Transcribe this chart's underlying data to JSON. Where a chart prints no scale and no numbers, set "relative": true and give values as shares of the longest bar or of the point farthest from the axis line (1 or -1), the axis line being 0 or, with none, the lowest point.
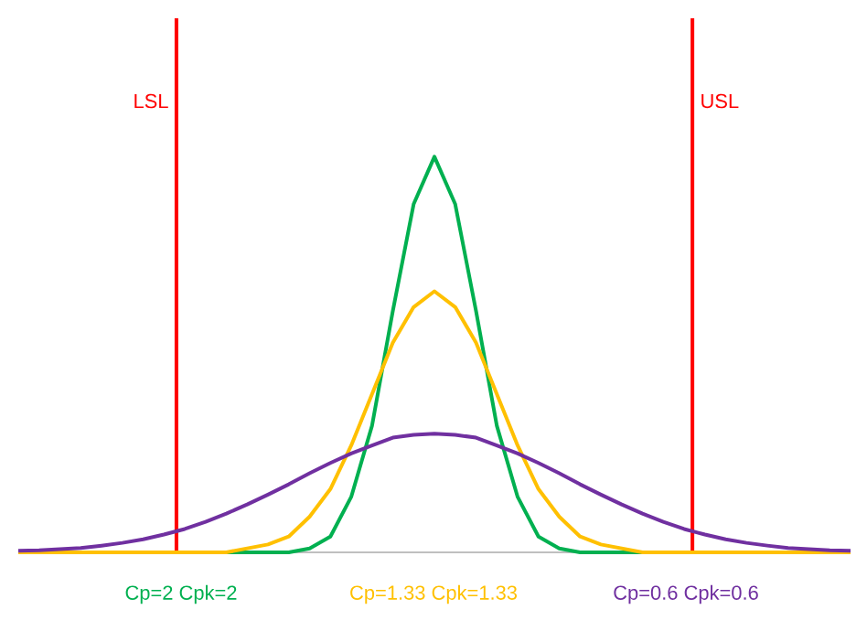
{
  "chart_data": {
    "type": "line",
    "relative": true,
    "marker": "none",
    "line_style": "solid",
    "categories": [
      null,
      null,
      null,
      null,
      null,
      null,
      null,
      null,
      null,
      null,
      null,
      null,
      null,
      null,
      null,
      null,
      null,
      null,
      null,
      null,
      null,
      null,
      null,
      null,
      null,
      null,
      null,
      null,
      null,
      null,
      null,
      null,
      null,
      null,
      null,
      null,
      null,
      null,
      null,
      null,
      null
    ],
    "series": [
      {
        "name": "Cp=2 Cpk=2",
        "color": "#00b050",
        "values": [
          null,
          null,
          null,
          null,
          null,
          null,
          null,
          null,
          null,
          0,
          0,
          0,
          0,
          0,
          0.01,
          0.04,
          0.14,
          0.32,
          0.61,
          0.88,
          1,
          0.88,
          0.61,
          0.32,
          0.14,
          0.04,
          0.01,
          0,
          0,
          0,
          0,
          0,
          null,
          null,
          null,
          null,
          null,
          null,
          null,
          null,
          null
        ]
      },
      {
        "name": "Cp=1.33 Cpk=1.33",
        "color": "#ffc000",
        "values": [
          0,
          0,
          0,
          0,
          0,
          0,
          0,
          0,
          0,
          0,
          0,
          0.01,
          0.02,
          0.04,
          0.09,
          0.16,
          0.27,
          0.4,
          0.53,
          0.62,
          0.66,
          0.62,
          0.53,
          0.4,
          0.27,
          0.16,
          0.09,
          0.04,
          0.02,
          0.01,
          0,
          0,
          0,
          0,
          0,
          0,
          0,
          0,
          0,
          0,
          0
        ]
      },
      {
        "name": "Cp=0.6 Cpk=0.6",
        "color": "#7030a0",
        "values": [
          0.004,
          0.005,
          0.008,
          0.011,
          0.017,
          0.024,
          0.033,
          0.045,
          0.059,
          0.077,
          0.098,
          0.121,
          0.146,
          0.172,
          0.2,
          0.226,
          0.25,
          0.27,
          0.29,
          0.297,
          0.3,
          0.297,
          0.29,
          0.27,
          0.25,
          0.226,
          0.2,
          0.172,
          0.146,
          0.121,
          0.098,
          0.077,
          0.059,
          0.045,
          0.033,
          0.024,
          0.017,
          0.011,
          0.008,
          0.005,
          0.004
        ]
      }
    ],
    "annotations": [
      "LSL",
      "USL"
    ]
  }
}
